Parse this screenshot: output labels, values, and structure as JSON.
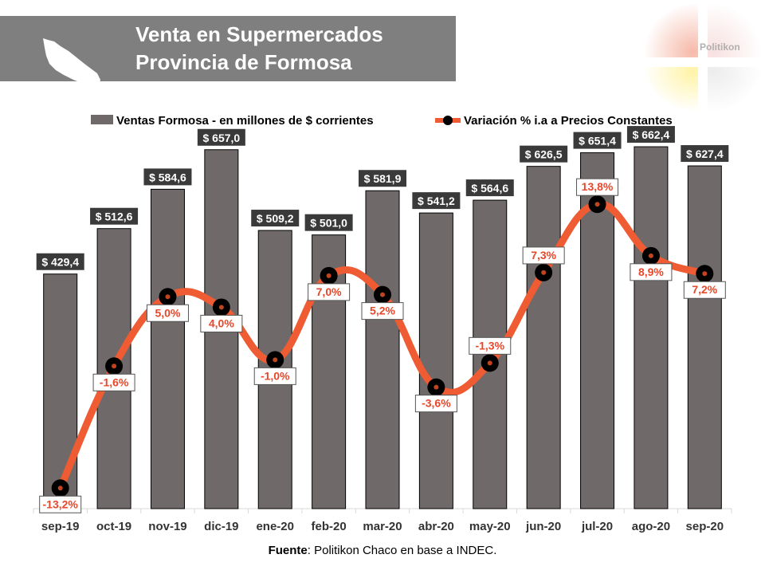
{
  "header": {
    "title_line_1": "Venta en Supermercados",
    "title_line_2": "Provincia de Formosa",
    "logo_text": "Politikon"
  },
  "colors": {
    "header_band": "#7f7f7f",
    "bars": "#6f6a69",
    "line": "#ef5b32",
    "markers": "#000000",
    "line_label_text": "#e8472a"
  },
  "icons": {
    "province_map": "formosa-province-map-icon",
    "logo": "politikon-logo-icon"
  },
  "chart_data": {
    "type": "bar",
    "categories": [
      "sep-19",
      "oct-19",
      "nov-19",
      "dic-19",
      "ene-20",
      "feb-20",
      "mar-20",
      "abr-20",
      "may-20",
      "jun-20",
      "jul-20",
      "ago-20",
      "sep-20"
    ],
    "series": [
      {
        "name": "Ventas Formosa - en millones de $ corrientes",
        "type": "bar",
        "values": [
          429.4,
          512.6,
          584.6,
          657.0,
          509.2,
          501.0,
          581.9,
          541.2,
          564.6,
          626.5,
          651.4,
          662.4,
          627.4
        ],
        "labels": [
          "$ 429,4",
          "$ 512,6",
          "$ 584,6",
          "$ 657,0",
          "$ 509,2",
          "$ 501,0",
          "$ 581,9",
          "$ 541,2",
          "$ 564,6",
          "$ 626,5",
          "$ 651,4",
          "$ 662,4",
          "$ 627,4"
        ]
      },
      {
        "name": "Variación % i.a a Precios Constantes",
        "type": "line",
        "values": [
          -13.2,
          -1.6,
          5.0,
          4.0,
          -1.0,
          7.0,
          5.2,
          -3.6,
          -1.3,
          7.3,
          13.8,
          8.9,
          7.2
        ],
        "labels": [
          "-13,2%",
          "-1,6%",
          "5,0%",
          "4,0%",
          "-1,0%",
          "7,0%",
          "5,2%",
          "-3,6%",
          "-1,3%",
          "7,3%",
          "13,8%",
          "8,9%",
          "7,2%"
        ]
      }
    ],
    "bar_axis_range": [
      0,
      700
    ],
    "line_axis_range": [
      -15,
      17
    ],
    "legend_position": "top",
    "grid": false
  },
  "source": {
    "label": "Fuente",
    "text": ": Politikon Chaco en base a INDEC."
  }
}
